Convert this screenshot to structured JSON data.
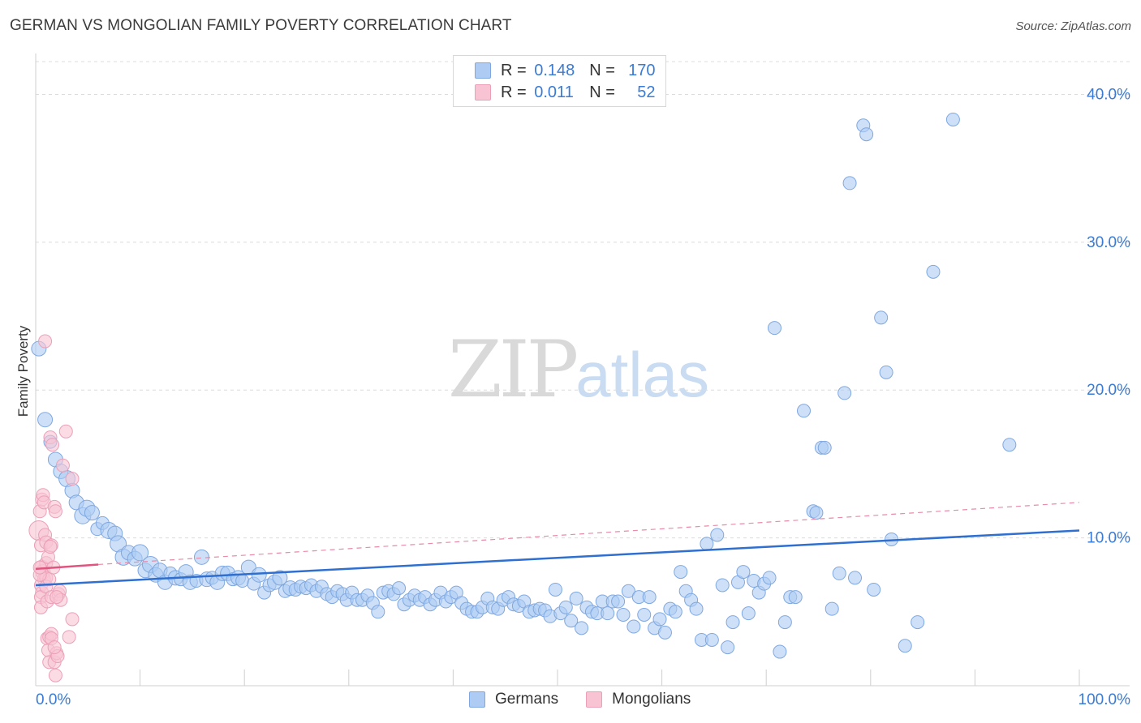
{
  "title": "GERMAN VS MONGOLIAN FAMILY POVERTY CORRELATION CHART",
  "source": "Source: ZipAtlas.com",
  "watermark": {
    "zip": "ZIP",
    "atlas": "atlas"
  },
  "legend": {
    "rows": [
      {
        "r_label": "R = ",
        "r_value": "0.148",
        "n_label": "N = ",
        "n_value": "170",
        "color": "#aecbf3",
        "border": "#7fa8e0"
      },
      {
        "r_label": "R = ",
        "r_value": "0.011",
        "n_label": "N = ",
        "n_value": "52",
        "color": "#f8c4d4",
        "border": "#eba0b8"
      }
    ]
  },
  "bottom_legend": [
    {
      "label": "Germans",
      "color": "#aecbf3",
      "border": "#7fa8e0"
    },
    {
      "label": "Mongolians",
      "color": "#f8c4d4",
      "border": "#eba0b8"
    }
  ],
  "chart_data": {
    "type": "scatter",
    "ylabel": "Family Poverty",
    "xlabel": "",
    "xlim": [
      0,
      100
    ],
    "ylim": [
      0,
      42
    ],
    "x_tick_labels": [
      "0.0%",
      "100.0%"
    ],
    "y_ticks": [
      10,
      20,
      30,
      40
    ],
    "y_tick_labels": [
      "10.0%",
      "20.0%",
      "30.0%",
      "40.0%"
    ],
    "grid": "horizontal dashed",
    "legend_position": "top-center",
    "series": [
      {
        "name": "Germans",
        "color": "#aecbf3",
        "stroke": "#7fa8e0",
        "trend": {
          "x": [
            0,
            100
          ],
          "y": [
            6.8,
            10.5
          ],
          "color": "#2f6fd0"
        },
        "points": [
          [
            0.3,
            22.8,
            9
          ],
          [
            0.9,
            18.0,
            9
          ],
          [
            1.4,
            16.5,
            8
          ],
          [
            1.9,
            15.3,
            9
          ],
          [
            2.4,
            14.5,
            9
          ],
          [
            3.0,
            14.0,
            10
          ],
          [
            3.5,
            13.2,
            9
          ],
          [
            3.9,
            12.4,
            9
          ],
          [
            4.5,
            11.5,
            10
          ],
          [
            4.9,
            12.0,
            10
          ],
          [
            5.4,
            11.7,
            9
          ],
          [
            5.9,
            10.6,
            8
          ],
          [
            6.4,
            11.0,
            8
          ],
          [
            7.0,
            10.5,
            10
          ],
          [
            7.6,
            10.3,
            9
          ],
          [
            7.9,
            9.6,
            10
          ],
          [
            8.4,
            8.7,
            10
          ],
          [
            8.9,
            9.0,
            9
          ],
          [
            9.5,
            8.6,
            9
          ],
          [
            10.0,
            9.0,
            10
          ],
          [
            10.5,
            7.8,
            9
          ],
          [
            11.0,
            8.2,
            10
          ],
          [
            11.5,
            7.5,
            9
          ],
          [
            11.9,
            7.8,
            9
          ],
          [
            12.4,
            7.0,
            9
          ],
          [
            12.9,
            7.6,
            8
          ],
          [
            13.4,
            7.3,
            9
          ],
          [
            13.9,
            7.2,
            8
          ],
          [
            14.4,
            7.7,
            9
          ],
          [
            14.8,
            7.0,
            9
          ],
          [
            15.4,
            7.1,
            8
          ],
          [
            15.9,
            8.7,
            9
          ],
          [
            16.4,
            7.2,
            9
          ],
          [
            16.9,
            7.3,
            8
          ],
          [
            17.4,
            7.0,
            9
          ],
          [
            17.9,
            7.6,
            9
          ],
          [
            18.4,
            7.6,
            9
          ],
          [
            18.9,
            7.2,
            8
          ],
          [
            19.4,
            7.3,
            9
          ],
          [
            19.8,
            7.1,
            8
          ],
          [
            20.4,
            8.0,
            9
          ],
          [
            20.9,
            6.9,
            8
          ],
          [
            21.4,
            7.5,
            9
          ],
          [
            21.9,
            6.3,
            8
          ],
          [
            22.4,
            6.8,
            8
          ],
          [
            22.9,
            7.0,
            9
          ],
          [
            23.4,
            7.3,
            9
          ],
          [
            23.9,
            6.4,
            8
          ],
          [
            24.4,
            6.6,
            9
          ],
          [
            24.9,
            6.5,
            8
          ],
          [
            25.4,
            6.7,
            8
          ],
          [
            25.9,
            6.6,
            8
          ],
          [
            26.4,
            6.8,
            8
          ],
          [
            26.9,
            6.4,
            8
          ],
          [
            27.4,
            6.7,
            8
          ],
          [
            27.9,
            6.2,
            8
          ],
          [
            28.4,
            6.0,
            8
          ],
          [
            28.9,
            6.4,
            8
          ],
          [
            29.4,
            6.2,
            8
          ],
          [
            29.8,
            5.8,
            8
          ],
          [
            30.3,
            6.3,
            8
          ],
          [
            30.8,
            5.8,
            8
          ],
          [
            31.3,
            5.8,
            8
          ],
          [
            31.8,
            6.1,
            8
          ],
          [
            32.3,
            5.6,
            8
          ],
          [
            32.8,
            5.0,
            8
          ],
          [
            33.3,
            6.3,
            8
          ],
          [
            33.8,
            6.4,
            8
          ],
          [
            34.3,
            6.2,
            8
          ],
          [
            34.8,
            6.6,
            8
          ],
          [
            35.3,
            5.5,
            8
          ],
          [
            35.8,
            5.8,
            8
          ],
          [
            36.3,
            6.1,
            8
          ],
          [
            36.8,
            5.8,
            8
          ],
          [
            37.3,
            6.0,
            8
          ],
          [
            37.8,
            5.5,
            8
          ],
          [
            38.3,
            5.8,
            8
          ],
          [
            38.8,
            6.3,
            8
          ],
          [
            39.3,
            5.7,
            8
          ],
          [
            39.8,
            6.0,
            8
          ],
          [
            40.3,
            6.3,
            8
          ],
          [
            40.8,
            5.6,
            8
          ],
          [
            41.3,
            5.2,
            8
          ],
          [
            41.8,
            5.0,
            8
          ],
          [
            42.3,
            5.0,
            8
          ],
          [
            42.8,
            5.3,
            8
          ],
          [
            43.3,
            5.9,
            8
          ],
          [
            43.8,
            5.3,
            8
          ],
          [
            44.3,
            5.2,
            8
          ],
          [
            44.8,
            5.8,
            8
          ],
          [
            45.3,
            6.0,
            8
          ],
          [
            45.8,
            5.5,
            8
          ],
          [
            46.3,
            5.4,
            8
          ],
          [
            46.8,
            5.7,
            8
          ],
          [
            47.3,
            5.0,
            8
          ],
          [
            47.8,
            5.1,
            8
          ],
          [
            48.3,
            5.2,
            8
          ],
          [
            48.8,
            5.1,
            8
          ],
          [
            49.3,
            4.7,
            8
          ],
          [
            49.8,
            6.5,
            8
          ],
          [
            50.3,
            4.9,
            8
          ],
          [
            50.8,
            5.3,
            8
          ],
          [
            51.3,
            4.4,
            8
          ],
          [
            51.8,
            5.9,
            8
          ],
          [
            52.3,
            3.9,
            8
          ],
          [
            52.8,
            5.3,
            8
          ],
          [
            53.3,
            5.0,
            8
          ],
          [
            53.8,
            4.9,
            8
          ],
          [
            54.3,
            5.7,
            8
          ],
          [
            54.8,
            4.9,
            8
          ],
          [
            55.3,
            5.7,
            8
          ],
          [
            55.8,
            5.7,
            8
          ],
          [
            56.3,
            4.8,
            8
          ],
          [
            56.8,
            6.4,
            8
          ],
          [
            57.3,
            4.0,
            8
          ],
          [
            57.8,
            6.0,
            8
          ],
          [
            58.3,
            4.8,
            8
          ],
          [
            58.8,
            6.0,
            8
          ],
          [
            59.3,
            3.9,
            8
          ],
          [
            59.8,
            4.5,
            8
          ],
          [
            60.3,
            3.6,
            8
          ],
          [
            60.8,
            5.2,
            8
          ],
          [
            61.3,
            5.0,
            8
          ],
          [
            61.8,
            7.7,
            8
          ],
          [
            62.3,
            6.4,
            8
          ],
          [
            62.8,
            5.8,
            8
          ],
          [
            63.3,
            5.2,
            8
          ],
          [
            63.8,
            3.1,
            8
          ],
          [
            64.3,
            9.6,
            8
          ],
          [
            64.8,
            3.1,
            8
          ],
          [
            65.3,
            10.2,
            8
          ],
          [
            65.8,
            6.8,
            8
          ],
          [
            66.3,
            2.6,
            8
          ],
          [
            66.8,
            4.3,
            8
          ],
          [
            67.3,
            7.0,
            8
          ],
          [
            67.8,
            7.7,
            8
          ],
          [
            68.3,
            4.9,
            8
          ],
          [
            68.8,
            7.1,
            8
          ],
          [
            69.3,
            6.3,
            8
          ],
          [
            69.8,
            6.9,
            8
          ],
          [
            70.3,
            7.3,
            8
          ],
          [
            70.8,
            24.2,
            8
          ],
          [
            71.3,
            2.3,
            8
          ],
          [
            71.8,
            4.3,
            8
          ],
          [
            72.3,
            6.0,
            8
          ],
          [
            72.8,
            6.0,
            8
          ],
          [
            73.6,
            18.6,
            8
          ],
          [
            74.5,
            11.8,
            8
          ],
          [
            74.8,
            11.7,
            8
          ],
          [
            75.3,
            16.1,
            8
          ],
          [
            75.6,
            16.1,
            8
          ],
          [
            76.3,
            5.2,
            8
          ],
          [
            77.0,
            7.6,
            8
          ],
          [
            77.5,
            19.8,
            8
          ],
          [
            78.0,
            34.0,
            8
          ],
          [
            78.5,
            7.3,
            8
          ],
          [
            79.3,
            37.9,
            8
          ],
          [
            79.6,
            37.3,
            8
          ],
          [
            80.3,
            6.5,
            8
          ],
          [
            81.0,
            24.9,
            8
          ],
          [
            81.5,
            21.2,
            8
          ],
          [
            82.0,
            9.9,
            8
          ],
          [
            83.3,
            2.7,
            8
          ],
          [
            84.5,
            4.3,
            8
          ],
          [
            86.0,
            28.0,
            8
          ],
          [
            87.9,
            38.3,
            8
          ],
          [
            93.3,
            16.3,
            8
          ]
        ]
      },
      {
        "name": "Mongolians",
        "color": "#f8c4d4",
        "stroke": "#eba0b8",
        "trend": {
          "x": [
            0,
            6
          ],
          "y": [
            7.9,
            8.2
          ],
          "color": "#e0557f",
          "dashed_extension": {
            "x": [
              6,
              100
            ],
            "y": [
              8.2,
              12.4
            ]
          }
        },
        "points": [
          [
            0.3,
            10.5,
            12
          ],
          [
            0.4,
            11.8,
            8
          ],
          [
            0.5,
            9.5,
            8
          ],
          [
            0.6,
            8.0,
            9
          ],
          [
            0.7,
            7.7,
            9
          ],
          [
            0.8,
            7.2,
            8
          ],
          [
            0.5,
            6.8,
            8
          ],
          [
            0.6,
            6.3,
            8
          ],
          [
            0.5,
            6.0,
            8
          ],
          [
            0.5,
            5.3,
            8
          ],
          [
            0.6,
            12.6,
            8
          ],
          [
            0.7,
            12.9,
            8
          ],
          [
            0.8,
            12.4,
            8
          ],
          [
            0.9,
            10.2,
            8
          ],
          [
            1.0,
            9.7,
            8
          ],
          [
            1.0,
            8.3,
            8
          ],
          [
            1.0,
            7.3,
            8
          ],
          [
            1.0,
            6.7,
            8
          ],
          [
            1.1,
            5.7,
            8
          ],
          [
            1.2,
            8.7,
            8
          ],
          [
            0.9,
            23.3,
            8
          ],
          [
            1.1,
            3.2,
            8
          ],
          [
            1.2,
            2.4,
            8
          ],
          [
            1.3,
            3.3,
            8
          ],
          [
            1.3,
            1.6,
            8
          ],
          [
            1.3,
            7.2,
            8
          ],
          [
            1.4,
            16.8,
            8
          ],
          [
            1.5,
            6.0,
            8
          ],
          [
            1.5,
            9.5,
            8
          ],
          [
            1.5,
            3.5,
            8
          ],
          [
            1.6,
            16.3,
            8
          ],
          [
            1.5,
            3.2,
            8
          ],
          [
            1.7,
            8.0,
            8
          ],
          [
            1.8,
            1.6,
            8
          ],
          [
            1.8,
            12.1,
            8
          ],
          [
            1.9,
            0.7,
            8
          ],
          [
            1.9,
            11.8,
            8
          ],
          [
            2.0,
            2.2,
            8
          ],
          [
            2.1,
            2.0,
            8
          ],
          [
            2.2,
            6.2,
            8
          ],
          [
            2.3,
            6.4,
            8
          ],
          [
            2.4,
            5.8,
            8
          ],
          [
            2.6,
            14.9,
            8
          ],
          [
            2.9,
            17.2,
            8
          ],
          [
            3.2,
            3.3,
            8
          ],
          [
            3.5,
            4.5,
            8
          ],
          [
            3.5,
            14.0,
            8
          ],
          [
            0.4,
            7.5,
            8
          ],
          [
            0.4,
            8.0,
            8
          ],
          [
            1.4,
            9.4,
            8
          ],
          [
            1.8,
            2.6,
            8
          ],
          [
            2.0,
            6.0,
            8
          ]
        ]
      }
    ]
  }
}
